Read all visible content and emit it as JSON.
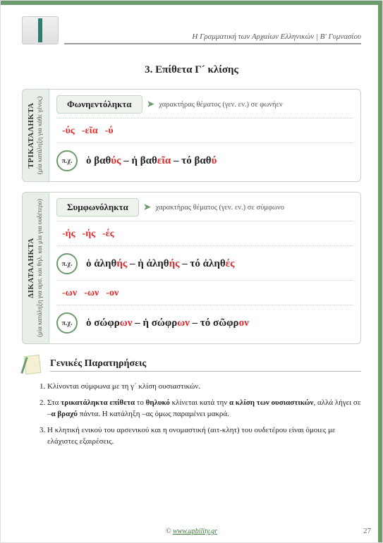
{
  "colors": {
    "accent": "#6d9b6d",
    "red": "#e02a2a",
    "box_bg": "#eef3ee",
    "box_border": "#c7d4c7",
    "side_bg": "#e8eee8"
  },
  "header": {
    "title": "Η Γραμματική των Αρχαίων Ελληνικών | Β' Γυμνασίου"
  },
  "page_title": "3. Επίθετα Γ´ κλίσης",
  "card1": {
    "side_main": "ΤΡΙΚΑΤΑΛΗΚΤΑ",
    "side_sub": "(μία κατάληξη για κάθε γένος)",
    "head_label": "Φωνηεντόληκτα",
    "head_desc": "χαρακτήρας θέματος (γεν. εν.) σε φωνήεν",
    "endings": [
      "-ύς",
      "-εῖα",
      "-ύ"
    ],
    "px": "π.χ.",
    "example_html": "ὁ βαθ<span style='color:#e02a2a'>ύς</span> – ἡ βαθ<span style='color:#e02a2a'>εῖα</span> – τό βαθ<span style='color:#e02a2a'>ύ</span>"
  },
  "card2": {
    "side_main": "ΔΙΚΑΤΑΛΗΚΤΑ",
    "side_sub": "(μία κατάληξη για αρσ. και θηλ. και μία για ουδέτερο)",
    "head_label": "Συμφωνόληκτα",
    "head_desc": "χαρακτήρας θέματος (γεν. εν.) σε σύμφωνο",
    "endings1": [
      "-ής",
      "-ής",
      "-ές"
    ],
    "px": "π.χ.",
    "example1_html": "ὁ ἀληθ<span style='color:#e02a2a'>ής</span> – ἡ ἀληθ<span style='color:#e02a2a'>ής</span> – τό ἀληθ<span style='color:#e02a2a'>ές</span>",
    "endings2": [
      "-ων",
      "-ων",
      "-ον"
    ],
    "example2_html": "ὁ σώφρ<span style='color:#e02a2a'>ων</span> – ἡ σώφρ<span style='color:#e02a2a'>ων</span> – τό σῶφρ<span style='color:#e02a2a'>ον</span>"
  },
  "notes": {
    "title": "Γενικές Παρατηρήσεις",
    "items": [
      "Κλίνονται σύμφωνα με τη γ´ κλίση ουσιαστικών.",
      "Στα <b>τρικατάληκτα επίθετα</b> το <b>θηλυκό</b> κλίνεται κατά την <b>α κλίση των ουσιαστικών</b>, αλλά λήγει σε –<b>α βραχύ</b> πάντα. Η κατάληξη –ας όμως παραμένει μακρά.",
      "Η κλητική ενικού του αρσενικού και η ονομαστική (αιτ-κλητ) του ουδετέρου είναι όμοιες με ελάχιστες εξαιρέσεις."
    ]
  },
  "footer": {
    "copyright": "©",
    "link_text": "www.upbility.gr",
    "page_number": "27"
  }
}
